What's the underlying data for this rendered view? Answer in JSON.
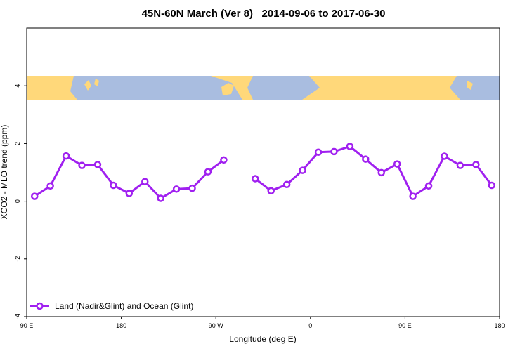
{
  "chart_data": {
    "type": "line",
    "title": "45N-60N March (Ver 8)   2014-09-06 to 2017-06-30",
    "x_label": "Longitude (deg E)",
    "y_label": "XCO2 - MLO trend (ppm)",
    "x": [
      97.5,
      112.5,
      127.5,
      142.5,
      157.5,
      172.5,
      187.5,
      202.5,
      217.5,
      232.5,
      247.5,
      262.5,
      277.5,
      292.5,
      307.5,
      322.5,
      337.5,
      352.5,
      367.5,
      382.5,
      397.5,
      412.5,
      427.5,
      442.5,
      457.5,
      472.5,
      487.5,
      502.5,
      517.5,
      532.5
    ],
    "series": [
      {
        "name": "Land (Nadir&Glint) and Ocean (Glint)",
        "color": "#a020f0",
        "values": [
          0.17,
          0.53,
          1.57,
          1.24,
          1.27,
          0.55,
          0.27,
          0.68,
          0.1,
          0.42,
          0.45,
          1.02,
          1.43,
          null,
          0.78,
          0.36,
          0.58,
          1.07,
          1.7,
          1.72,
          1.9,
          1.46,
          0.99,
          1.29,
          0.17,
          0.53,
          1.56,
          1.24,
          1.27,
          0.55
        ]
      }
    ],
    "xlim": [
      90,
      540
    ],
    "xticks": [
      {
        "value": 90,
        "label": "90 E"
      },
      {
        "value": 180,
        "label": "180"
      },
      {
        "value": 270,
        "label": "90 W"
      },
      {
        "value": 360,
        "label": "0"
      },
      {
        "value": 450,
        "label": "90 E"
      },
      {
        "value": 540,
        "label": "180"
      }
    ],
    "ylim": [
      -4,
      6
    ],
    "yticks": [
      -4,
      -2,
      0,
      2,
      4
    ],
    "legend": "bottom-left"
  }
}
